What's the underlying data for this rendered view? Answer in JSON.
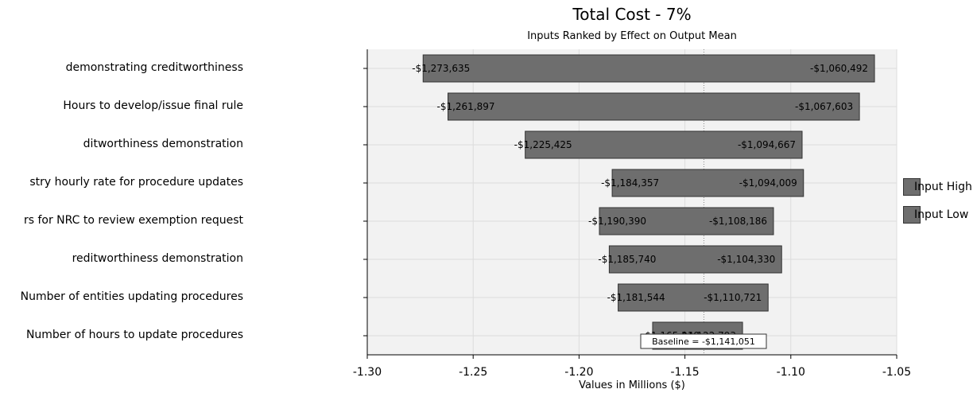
{
  "chart_data": {
    "type": "bar",
    "orientation": "horizontal-tornado",
    "title": "Total Cost - 7%",
    "subtitle": "Inputs Ranked by Effect on Output Mean",
    "xlabel": "Values in Millions ($)",
    "xlim": [
      -1.3,
      -1.05
    ],
    "xticks": [
      -1.3,
      -1.25,
      -1.2,
      -1.15,
      -1.1,
      -1.05
    ],
    "xtick_labels": [
      "-1.30",
      "-1.25",
      "-1.20",
      "-1.15",
      "-1.10",
      "-1.05"
    ],
    "grid": true,
    "legend_position": "right",
    "legend": [
      "Input High",
      "Input Low"
    ],
    "baseline": {
      "value": -1.141051,
      "label": "Baseline = -$1,141,051"
    },
    "categories": [
      "demonstrating creditworthiness",
      "Hours to develop/issue final rule",
      "ditworthiness demonstration",
      "stry hourly rate for procedure updates",
      "rs for NRC to review exemption request",
      "reditworthiness demonstration",
      "Number of entities updating procedures",
      "Number of hours to update procedures"
    ],
    "bars": [
      {
        "low": -1.273635,
        "high": -1.060492,
        "low_label": "-$1,273,635",
        "high_label": "-$1,060,492"
      },
      {
        "low": -1.261897,
        "high": -1.067603,
        "low_label": "-$1,261,897",
        "high_label": "-$1,067,603"
      },
      {
        "low": -1.225425,
        "high": -1.094667,
        "low_label": "-$1,225,425",
        "high_label": "-$1,094,667"
      },
      {
        "low": -1.184357,
        "high": -1.094009,
        "low_label": "-$1,184,357",
        "high_label": "-$1,094,009"
      },
      {
        "low": -1.19039,
        "high": -1.108186,
        "low_label": "-$1,190,390",
        "high_label": "-$1,108,186"
      },
      {
        "low": -1.18574,
        "high": -1.10433,
        "low_label": "-$1,185,740",
        "high_label": "-$1,104,330"
      },
      {
        "low": -1.181544,
        "high": -1.110721,
        "low_label": "-$1,181,544",
        "high_label": "-$1,110,721"
      },
      {
        "low": -1.165249,
        "high": -1.122793,
        "low_label": "-$1,165,249",
        "high_label": "-$1,122,793"
      }
    ],
    "colors": {
      "bar": "#6e6e6e",
      "bar_border": "#333333",
      "plot_bg": "#f2f2f2",
      "grid": "#dcdcdc"
    }
  }
}
